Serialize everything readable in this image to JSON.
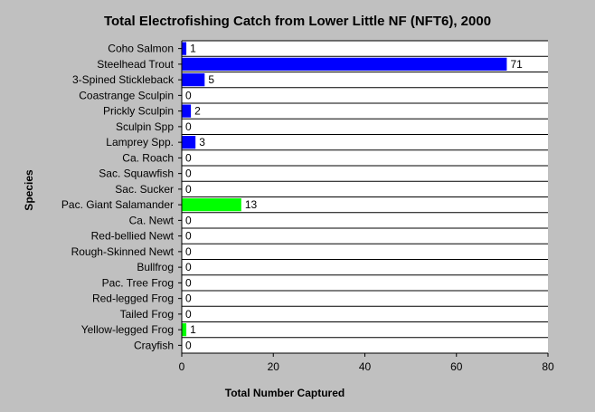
{
  "chart_data": {
    "type": "bar",
    "orientation": "horizontal",
    "title": "Total Electrofishing Catch from Lower Little NF (NFT6), 2000",
    "xlabel": "Total Number Captured",
    "ylabel": "Species",
    "xlim": [
      0,
      80
    ],
    "xticks": [
      "0",
      "20",
      "40",
      "60",
      "80"
    ],
    "grid": "horizontal lines between categories",
    "legend": "none",
    "colors": {
      "fish": "#0000ff",
      "amphibian": "#00ff00",
      "background": "#c0c0c0",
      "plot": "#ffffff"
    },
    "categories": [
      "Coho Salmon",
      "Steelhead Trout",
      "3-Spined Stickleback",
      "Coastrange Sculpin",
      "Prickly Sculpin",
      "Sculpin Spp",
      "Lamprey Spp.",
      "Ca. Roach",
      "Sac. Squawfish",
      "Sac. Sucker",
      "Pac. Giant Salamander",
      "Ca. Newt",
      "Red-bellied Newt",
      "Rough-Skinned Newt",
      "Bullfrog",
      "Pac. Tree Frog",
      "Red-legged Frog",
      "Tailed Frog",
      "Yellow-legged Frog",
      "Crayfish"
    ],
    "values": [
      1,
      71,
      5,
      0,
      2,
      0,
      3,
      0,
      0,
      0,
      13,
      0,
      0,
      0,
      0,
      0,
      0,
      0,
      1,
      0
    ],
    "bar_colors": [
      "#0000ff",
      "#0000ff",
      "#0000ff",
      "#0000ff",
      "#0000ff",
      "#0000ff",
      "#0000ff",
      "#0000ff",
      "#0000ff",
      "#0000ff",
      "#00ff00",
      "#00ff00",
      "#00ff00",
      "#00ff00",
      "#00ff00",
      "#00ff00",
      "#00ff00",
      "#00ff00",
      "#00ff00",
      "#0000ff"
    ]
  }
}
